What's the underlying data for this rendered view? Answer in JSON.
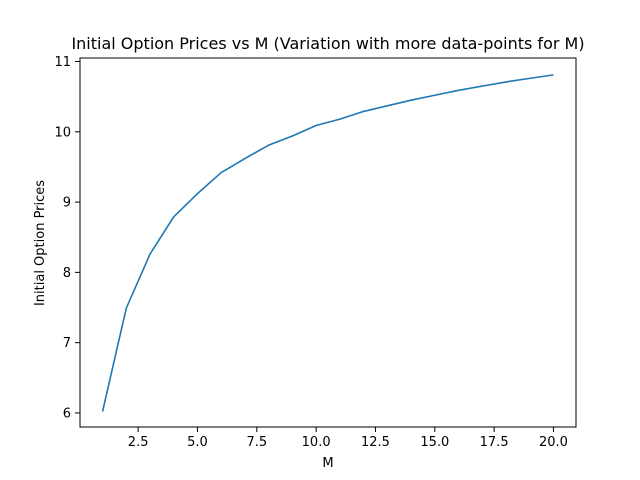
{
  "chart_data": {
    "type": "line",
    "title": "Initial Option Prices vs M (Variation with more data-points for M)",
    "xlabel": "M",
    "ylabel": "Initial Option Prices",
    "xlim": [
      0.05,
      20.95
    ],
    "ylim": [
      5.8,
      11.05
    ],
    "xticks": [
      2.5,
      5.0,
      7.5,
      10.0,
      12.5,
      15.0,
      17.5,
      20.0
    ],
    "xtick_labels": [
      "2.5",
      "5.0",
      "7.5",
      "10.0",
      "12.5",
      "15.0",
      "17.5",
      "20.0"
    ],
    "yticks": [
      6,
      7,
      8,
      9,
      10,
      11
    ],
    "ytick_labels": [
      "6",
      "7",
      "8",
      "9",
      "10",
      "11"
    ],
    "grid": false,
    "legend": false,
    "series": [
      {
        "color": "#1f77b4",
        "x": [
          1,
          2,
          3,
          4,
          5,
          6,
          7,
          8,
          9,
          10,
          11,
          12,
          13,
          14,
          15,
          16,
          17,
          18,
          19,
          20
        ],
        "y": [
          6.02,
          7.49,
          8.26,
          8.79,
          9.12,
          9.42,
          9.62,
          9.81,
          9.94,
          10.09,
          10.18,
          10.29,
          10.37,
          10.45,
          10.52,
          10.59,
          10.65,
          10.71,
          10.76,
          10.81
        ]
      }
    ]
  }
}
